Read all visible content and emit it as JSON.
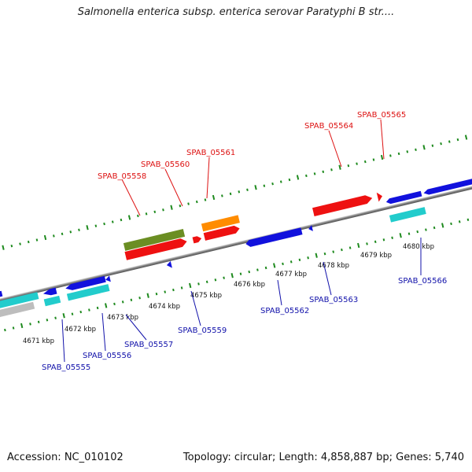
{
  "title": "Salmonella enterica subsp. enterica serovar Paratyphi B str....",
  "footer": {
    "accession": "Accession: NC_010102",
    "topology": "Topology: circular; Length: 4,858,887 bp; Genes: 5,740"
  },
  "colors": {
    "backbone": "#8a8a8a",
    "tick": "#1e8a1e",
    "label_top": "#dd1111",
    "label_bottom": "#1111aa",
    "red": "#ee1111",
    "blue": "#1111dd",
    "olive": "#6b8e23",
    "orange": "#ff8c00",
    "cyan": "#22cccc",
    "grey": "#bdbdbd"
  },
  "ticks": [
    {
      "label": "4671 kbp",
      "pos": 4671
    },
    {
      "label": "4672 kbp",
      "pos": 4672
    },
    {
      "label": "4673 kbp",
      "pos": 4673
    },
    {
      "label": "4674 kbp",
      "pos": 4674
    },
    {
      "label": "4675 kbp",
      "pos": 4675
    },
    {
      "label": "4676 kbp",
      "pos": 4676
    },
    {
      "label": "4677 kbp",
      "pos": 4677
    },
    {
      "label": "4678 kbp",
      "pos": 4678
    },
    {
      "label": "4679 kbp",
      "pos": 4679
    },
    {
      "label": "4680 kbp",
      "pos": 4680
    }
  ],
  "genes_top_labels": [
    "SPAB_05558",
    "SPAB_05560",
    "SPAB_05561",
    "SPAB_05564",
    "SPAB_05565"
  ],
  "genes_bottom_labels": [
    "SPAB_05555",
    "SPAB_05556",
    "SPAB_05557",
    "SPAB_05559",
    "SPAB_05562",
    "SPAB_05563",
    "SPAB_05566"
  ]
}
